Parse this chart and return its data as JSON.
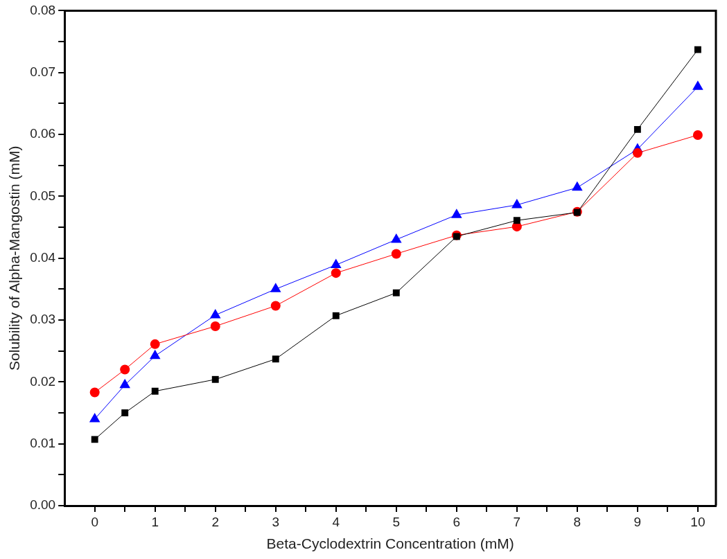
{
  "chart_data": {
    "type": "line",
    "xlabel": "Beta-Cyclodextrin Concentration (mM)",
    "ylabel": "Solubility of Alpha-Mangostin (mM)",
    "x": [
      0,
      0.5,
      1,
      2,
      3,
      4,
      5,
      6,
      7,
      8,
      9,
      10
    ],
    "series": [
      {
        "color": "#000000",
        "marker": "square",
        "values": [
          0.0107,
          0.015,
          0.0185,
          0.0204,
          0.0237,
          0.0307,
          0.0344,
          0.0435,
          0.0461,
          0.0474,
          0.0608,
          0.0737
        ]
      },
      {
        "color": "#ff0000",
        "marker": "circle",
        "values": [
          0.0183,
          0.022,
          0.0261,
          0.029,
          0.0323,
          0.0376,
          0.0407,
          0.0437,
          0.0451,
          0.0475,
          0.057,
          0.0599
        ]
      },
      {
        "color": "#0000ff",
        "marker": "triangle",
        "values": [
          0.014,
          0.0195,
          0.0242,
          0.0308,
          0.035,
          0.0389,
          0.043,
          0.047,
          0.0486,
          0.0514,
          0.0576,
          0.0677
        ]
      }
    ],
    "xlim": [
      -0.5,
      10.3
    ],
    "xticks": [
      0,
      {
        "value": 0.5,
        "label": null
      },
      1,
      {
        "value": 1.5,
        "label": null
      },
      2,
      {
        "value": 2.5,
        "label": null
      },
      3,
      {
        "value": 3.5,
        "label": null
      },
      4,
      {
        "value": 4.5,
        "label": null
      },
      5,
      {
        "value": 5.5,
        "label": null
      },
      6,
      {
        "value": 6.5,
        "label": null
      },
      7,
      {
        "value": 7.5,
        "label": null
      },
      8,
      {
        "value": 8.5,
        "label": null
      },
      9,
      {
        "value": 9.5,
        "label": null
      },
      10
    ],
    "ylim": [
      0,
      0.08
    ],
    "yticks": [
      {
        "value": 0,
        "label": "0.00"
      },
      {
        "value": 0.005,
        "label": null
      },
      {
        "value": 0.01,
        "label": "0.01"
      },
      {
        "value": 0.015,
        "label": null
      },
      {
        "value": 0.02,
        "label": "0.02"
      },
      {
        "value": 0.025,
        "label": null
      },
      {
        "value": 0.03,
        "label": "0.03"
      },
      {
        "value": 0.035,
        "label": null
      },
      {
        "value": 0.04,
        "label": "0.04"
      },
      {
        "value": 0.045,
        "label": null
      },
      {
        "value": 0.05,
        "label": "0.05"
      },
      {
        "value": 0.055,
        "label": null
      },
      {
        "value": 0.06,
        "label": "0.06"
      },
      {
        "value": 0.065,
        "label": null
      },
      {
        "value": 0.07,
        "label": "0.07"
      },
      {
        "value": 0.075,
        "label": null
      },
      {
        "value": 0.08,
        "label": "0.08"
      }
    ],
    "grid": false,
    "legend": false,
    "line_style": "solid"
  }
}
